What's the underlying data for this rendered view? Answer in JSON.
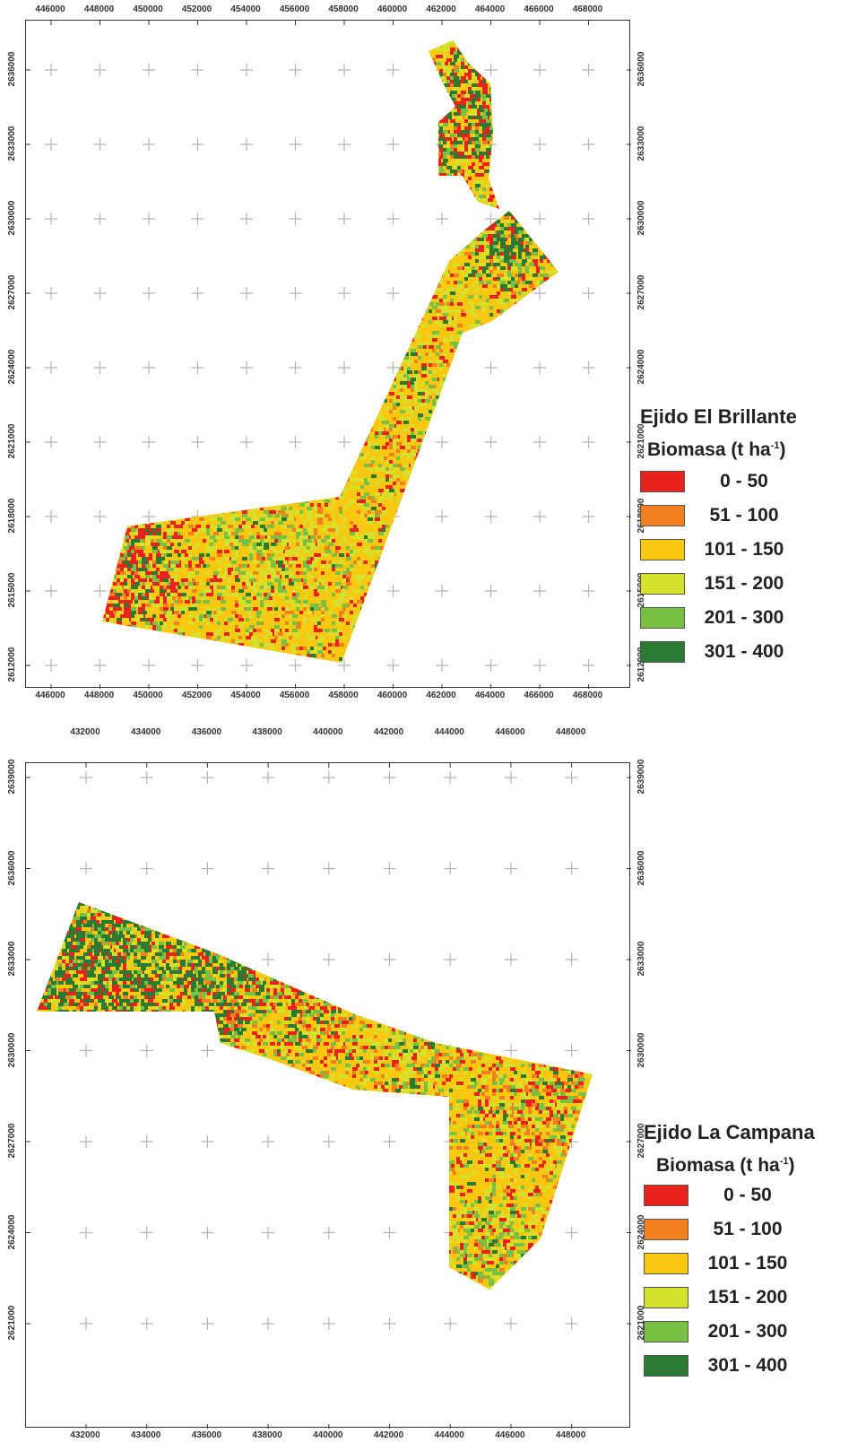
{
  "maps": [
    {
      "id": "brillante",
      "x_ticks": [
        "446000",
        "448000",
        "450000",
        "452000",
        "454000",
        "456000",
        "458000",
        "460000",
        "462000",
        "464000",
        "466000",
        "468000"
      ],
      "y_ticks": [
        "2636000",
        "2633000",
        "2630000",
        "2627000",
        "2624000",
        "2621000",
        "2618000",
        "2615000",
        "2612000"
      ],
      "legend": {
        "title": "Ejido El Brillante",
        "subtitle_main": "Biomasa (t ha",
        "subtitle_sup": "-1",
        "subtitle_end": ")"
      }
    },
    {
      "id": "campana",
      "x_ticks": [
        "432000",
        "434000",
        "436000",
        "438000",
        "440000",
        "442000",
        "444000",
        "446000",
        "448000"
      ],
      "y_ticks": [
        "2639000",
        "2636000",
        "2633000",
        "2630000",
        "2627000",
        "2624000",
        "2621000"
      ],
      "legend": {
        "title": "Ejido La Campana",
        "subtitle_main": "Biomasa (t ha",
        "subtitle_sup": "-1",
        "subtitle_end": ")"
      }
    }
  ],
  "classes": [
    {
      "label": "0 - 50",
      "color": "#e8231e"
    },
    {
      "label": "51 - 100",
      "color": "#f2801f"
    },
    {
      "label": "101 - 150",
      "color": "#fac811"
    },
    {
      "label": "151 - 200",
      "color": "#d5e22d"
    },
    {
      "label": "201 - 300",
      "color": "#79c143"
    },
    {
      "label": "301 - 400",
      "color": "#2a7a33"
    }
  ]
}
